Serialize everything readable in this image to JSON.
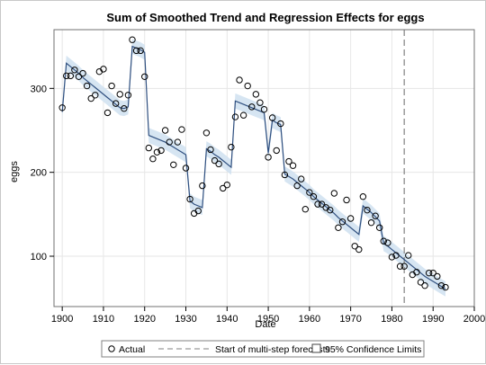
{
  "chart_data": {
    "type": "line",
    "title": "Sum of Smoothed Trend and Regression Effects for eggs",
    "xlabel": "Date",
    "ylabel": "eggs",
    "xlim": [
      1898,
      2000
    ],
    "ylim": [
      40,
      370
    ],
    "x_ticks": [
      1900,
      1910,
      1920,
      1930,
      1940,
      1950,
      1960,
      1970,
      1980,
      1990,
      2000
    ],
    "y_ticks": [
      100,
      200,
      300
    ],
    "grid": true,
    "forecast_start": 1983,
    "legend": {
      "placement": "bottom",
      "items": [
        "Actual",
        "Start of multi-step forecasts",
        "95% Confidence Limits"
      ]
    },
    "colors": {
      "trend": "#2f4f7f",
      "band": "#cfe0f0",
      "marker": "#000000",
      "refline": "#808080"
    },
    "series": [
      {
        "name": "Actual",
        "points": [
          [
            1900,
            277
          ],
          [
            1901,
            315
          ],
          [
            1902,
            315
          ],
          [
            1903,
            322
          ],
          [
            1904,
            314
          ],
          [
            1905,
            318
          ],
          [
            1906,
            303
          ],
          [
            1907,
            288
          ],
          [
            1908,
            292
          ],
          [
            1909,
            320
          ],
          [
            1910,
            323
          ],
          [
            1911,
            271
          ],
          [
            1912,
            303
          ],
          [
            1913,
            282
          ],
          [
            1914,
            293
          ],
          [
            1915,
            276
          ],
          [
            1916,
            292
          ],
          [
            1917,
            358
          ],
          [
            1918,
            345
          ],
          [
            1919,
            345
          ],
          [
            1920,
            314
          ],
          [
            1921,
            229
          ],
          [
            1922,
            216
          ],
          [
            1923,
            224
          ],
          [
            1924,
            226
          ],
          [
            1925,
            250
          ],
          [
            1926,
            236
          ],
          [
            1927,
            209
          ],
          [
            1928,
            236
          ],
          [
            1929,
            251
          ],
          [
            1930,
            205
          ],
          [
            1931,
            168
          ],
          [
            1932,
            151
          ],
          [
            1933,
            154
          ],
          [
            1934,
            184
          ],
          [
            1935,
            247
          ],
          [
            1936,
            227
          ],
          [
            1937,
            214
          ],
          [
            1938,
            210
          ],
          [
            1939,
            181
          ],
          [
            1940,
            185
          ],
          [
            1941,
            230
          ],
          [
            1942,
            266
          ],
          [
            1943,
            310
          ],
          [
            1944,
            268
          ],
          [
            1945,
            303
          ],
          [
            1946,
            278
          ],
          [
            1947,
            293
          ],
          [
            1948,
            283
          ],
          [
            1949,
            275
          ],
          [
            1950,
            218
          ],
          [
            1951,
            265
          ],
          [
            1952,
            226
          ],
          [
            1953,
            258
          ],
          [
            1954,
            197
          ],
          [
            1955,
            213
          ],
          [
            1956,
            208
          ],
          [
            1957,
            184
          ],
          [
            1958,
            192
          ],
          [
            1959,
            156
          ],
          [
            1960,
            176
          ],
          [
            1961,
            171
          ],
          [
            1962,
            162
          ],
          [
            1963,
            162
          ],
          [
            1964,
            158
          ],
          [
            1965,
            155
          ],
          [
            1966,
            175
          ],
          [
            1967,
            134
          ],
          [
            1968,
            141
          ],
          [
            1969,
            167
          ],
          [
            1970,
            145
          ],
          [
            1971,
            112
          ],
          [
            1972,
            108
          ],
          [
            1973,
            171
          ],
          [
            1974,
            155
          ],
          [
            1975,
            140
          ],
          [
            1976,
            148
          ],
          [
            1977,
            134
          ],
          [
            1978,
            118
          ],
          [
            1979,
            116
          ],
          [
            1980,
            99
          ],
          [
            1981,
            101
          ],
          [
            1982,
            88
          ],
          [
            1983,
            88
          ],
          [
            1984,
            101
          ],
          [
            1985,
            78
          ],
          [
            1986,
            81
          ],
          [
            1987,
            69
          ],
          [
            1988,
            65
          ],
          [
            1989,
            80
          ],
          [
            1990,
            80
          ],
          [
            1991,
            76
          ],
          [
            1992,
            65
          ],
          [
            1993,
            63
          ]
        ]
      },
      {
        "name": "Smoothed trend",
        "points": [
          [
            1900,
            272
          ],
          [
            1901,
            330
          ],
          [
            1902,
            326
          ],
          [
            1903,
            322
          ],
          [
            1904,
            318
          ],
          [
            1905,
            313
          ],
          [
            1906,
            309
          ],
          [
            1907,
            305
          ],
          [
            1908,
            301
          ],
          [
            1909,
            297
          ],
          [
            1910,
            293
          ],
          [
            1911,
            289
          ],
          [
            1912,
            285
          ],
          [
            1913,
            281
          ],
          [
            1914,
            277
          ],
          [
            1915,
            276
          ],
          [
            1916,
            278
          ],
          [
            1917,
            350
          ],
          [
            1918,
            348
          ],
          [
            1919,
            346
          ],
          [
            1920,
            343
          ],
          [
            1921,
            244
          ],
          [
            1922,
            242
          ],
          [
            1923,
            240
          ],
          [
            1924,
            238
          ],
          [
            1925,
            236
          ],
          [
            1926,
            233
          ],
          [
            1927,
            230
          ],
          [
            1928,
            227
          ],
          [
            1929,
            224
          ],
          [
            1930,
            221
          ],
          [
            1931,
            166
          ],
          [
            1932,
            162
          ],
          [
            1933,
            160
          ],
          [
            1934,
            158
          ],
          [
            1935,
            228
          ],
          [
            1936,
            225
          ],
          [
            1937,
            221
          ],
          [
            1938,
            218
          ],
          [
            1939,
            214
          ],
          [
            1940,
            210
          ],
          [
            1941,
            206
          ],
          [
            1942,
            285
          ],
          [
            1943,
            283
          ],
          [
            1944,
            281
          ],
          [
            1945,
            279
          ],
          [
            1946,
            277
          ],
          [
            1947,
            275
          ],
          [
            1948,
            273
          ],
          [
            1949,
            271
          ],
          [
            1950,
            223
          ],
          [
            1951,
            262
          ],
          [
            1952,
            259
          ],
          [
            1953,
            257
          ],
          [
            1954,
            198
          ],
          [
            1955,
            195
          ],
          [
            1956,
            192
          ],
          [
            1957,
            188
          ],
          [
            1958,
            184
          ],
          [
            1959,
            180
          ],
          [
            1960,
            176
          ],
          [
            1961,
            171
          ],
          [
            1962,
            167
          ],
          [
            1963,
            163
          ],
          [
            1964,
            159
          ],
          [
            1965,
            155
          ],
          [
            1966,
            151
          ],
          [
            1967,
            146
          ],
          [
            1968,
            142
          ],
          [
            1969,
            138
          ],
          [
            1970,
            134
          ],
          [
            1971,
            130
          ],
          [
            1972,
            126
          ],
          [
            1973,
            160
          ],
          [
            1974,
            156
          ],
          [
            1975,
            152
          ],
          [
            1976,
            147
          ],
          [
            1977,
            142
          ],
          [
            1978,
            115
          ],
          [
            1979,
            112
          ],
          [
            1980,
            108
          ],
          [
            1981,
            104
          ],
          [
            1982,
            100
          ],
          [
            1983,
            96
          ],
          [
            1984,
            92
          ],
          [
            1985,
            88
          ],
          [
            1986,
            84
          ],
          [
            1987,
            80
          ],
          [
            1988,
            76
          ],
          [
            1989,
            73
          ],
          [
            1990,
            70
          ],
          [
            1991,
            67
          ],
          [
            1992,
            64
          ],
          [
            1993,
            61
          ]
        ]
      }
    ]
  }
}
